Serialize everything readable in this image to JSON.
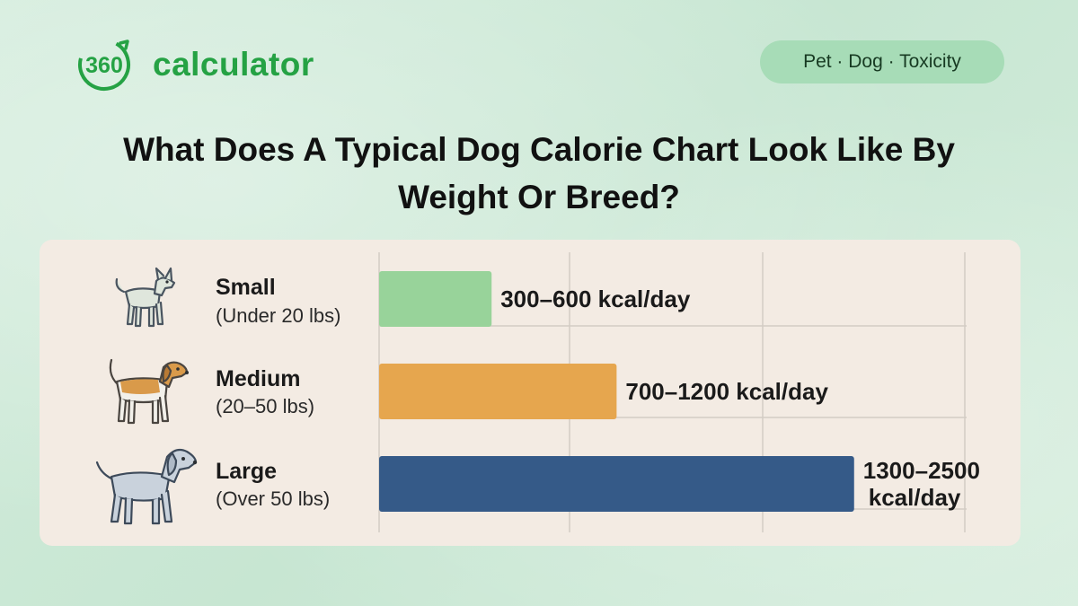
{
  "brand": {
    "logo_mark": "360",
    "name": "calculator",
    "accent_color": "#25a244"
  },
  "tag": {
    "label": "Pet · Dog · Toxicity"
  },
  "headline": {
    "line1": "What Does A Typical Dog Calorie Chart Look Like By",
    "line2": "Weight Or Breed?"
  },
  "chart_data": {
    "type": "bar",
    "orientation": "horizontal",
    "title": "",
    "xlabel": "",
    "ylabel": "",
    "grid": true,
    "categories": [
      "Small",
      "Medium",
      "Large"
    ],
    "category_notes": [
      "(Under 20 lbs)",
      "(20–50 lbs)",
      "(Over 50 lbs)"
    ],
    "category_icons": [
      "small-dog-icon",
      "medium-dog-icon",
      "large-dog-icon"
    ],
    "values": [
      450,
      950,
      1900
    ],
    "ranges": [
      [
        300,
        600
      ],
      [
        700,
        1200
      ],
      [
        1300,
        2500
      ]
    ],
    "value_labels": [
      [
        "300–600 kcal/day"
      ],
      [
        "700–1200 kcal/day"
      ],
      [
        "1300–2500",
        "kcal/day"
      ]
    ],
    "units": "kcal/day",
    "xlim": [
      0,
      2350
    ],
    "colors": [
      "#98d39a",
      "#e6a64e",
      "#355a88"
    ]
  }
}
